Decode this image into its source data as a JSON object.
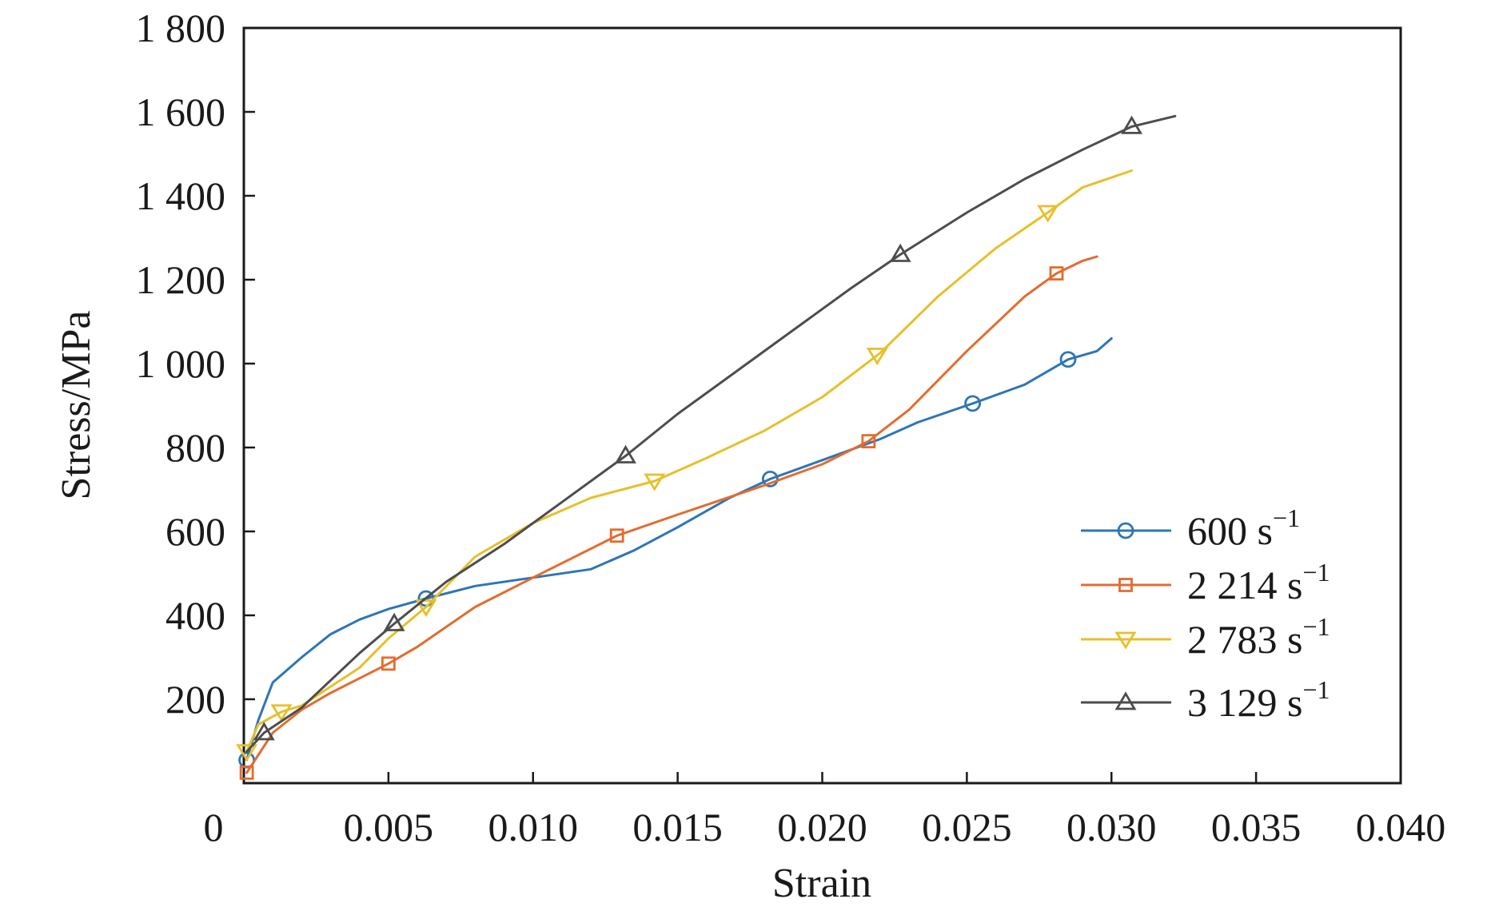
{
  "chart_data": {
    "type": "line",
    "title": "",
    "xlabel": "Strain",
    "ylabel": "Stress/MPa",
    "xlim": [
      0,
      0.04
    ],
    "ylim": [
      0,
      1800
    ],
    "x_ticks": [
      "0",
      "0.005",
      "0.010",
      "0.015",
      "0.020",
      "0.025",
      "0.030",
      "0.035",
      "0.040"
    ],
    "y_ticks": [
      "200",
      "400",
      "600",
      "800",
      "1 000",
      "1 200",
      "1 400",
      "1 600",
      "1 800"
    ],
    "grid": false,
    "legend_position": "bottom-right",
    "series": [
      {
        "name": "600 s",
        "name_superscript": "−1",
        "color": "#2e75b6",
        "marker": "circle",
        "x": [
          0.0001,
          0.0005,
          0.001,
          0.002,
          0.003,
          0.004,
          0.005,
          0.0063,
          0.008,
          0.01,
          0.012,
          0.0135,
          0.015,
          0.0168,
          0.0182,
          0.02,
          0.022,
          0.0233,
          0.0252,
          0.027,
          0.0285,
          0.0295,
          0.03
        ],
        "y": [
          55,
          150,
          240,
          300,
          355,
          390,
          415,
          440,
          470,
          490,
          510,
          555,
          610,
          680,
          725,
          770,
          820,
          860,
          905,
          950,
          1010,
          1030,
          1060
        ],
        "markers_x": [
          0.0001,
          0.0063,
          0.0182,
          0.0252,
          0.0285
        ],
        "markers_y": [
          55,
          440,
          725,
          905,
          1010
        ]
      },
      {
        "name": "2 214 s",
        "name_superscript": "−1",
        "color": "#e36c2f",
        "marker": "square",
        "x": [
          0.0001,
          0.001,
          0.002,
          0.003,
          0.004,
          0.005,
          0.006,
          0.008,
          0.01,
          0.0129,
          0.015,
          0.018,
          0.02,
          0.0216,
          0.023,
          0.025,
          0.027,
          0.0281,
          0.029,
          0.0295
        ],
        "y": [
          25,
          120,
          175,
          215,
          250,
          285,
          325,
          420,
          490,
          590,
          640,
          710,
          760,
          815,
          890,
          1030,
          1160,
          1215,
          1245,
          1255
        ],
        "markers_x": [
          0.0001,
          0.005,
          0.0129,
          0.0216,
          0.0281
        ],
        "markers_y": [
          25,
          285,
          590,
          815,
          1215
        ]
      },
      {
        "name": "2 783 s",
        "name_superscript": "−1",
        "color": "#e8bf2a",
        "marker": "triangle-down",
        "x": [
          0.0001,
          0.0005,
          0.0013,
          0.002,
          0.003,
          0.004,
          0.005,
          0.0063,
          0.008,
          0.01,
          0.012,
          0.0142,
          0.016,
          0.018,
          0.02,
          0.022,
          0.024,
          0.026,
          0.0278,
          0.029,
          0.0307
        ],
        "y": [
          75,
          140,
          170,
          185,
          230,
          275,
          345,
          420,
          540,
          620,
          680,
          720,
          775,
          840,
          920,
          1025,
          1160,
          1275,
          1360,
          1420,
          1460
        ],
        "markers_x": [
          0.0001,
          0.0013,
          0.0063,
          0.0142,
          0.0219,
          0.0278
        ],
        "markers_y": [
          75,
          170,
          420,
          720,
          1020,
          1360
        ]
      },
      {
        "name": "3 129 s",
        "name_superscript": "−1",
        "color": "#4d4d4d",
        "marker": "triangle-up",
        "x": [
          0.0001,
          0.0007,
          0.002,
          0.004,
          0.0052,
          0.007,
          0.009,
          0.011,
          0.0132,
          0.015,
          0.017,
          0.019,
          0.021,
          0.0227,
          0.025,
          0.027,
          0.029,
          0.0307,
          0.0322
        ],
        "y": [
          75,
          120,
          180,
          310,
          380,
          480,
          570,
          670,
          780,
          880,
          980,
          1080,
          1180,
          1260,
          1360,
          1440,
          1510,
          1565,
          1590
        ],
        "markers_x": [
          0.0007,
          0.0052,
          0.0132,
          0.0227,
          0.0307
        ],
        "markers_y": [
          120,
          380,
          780,
          1260,
          1565
        ]
      }
    ]
  }
}
